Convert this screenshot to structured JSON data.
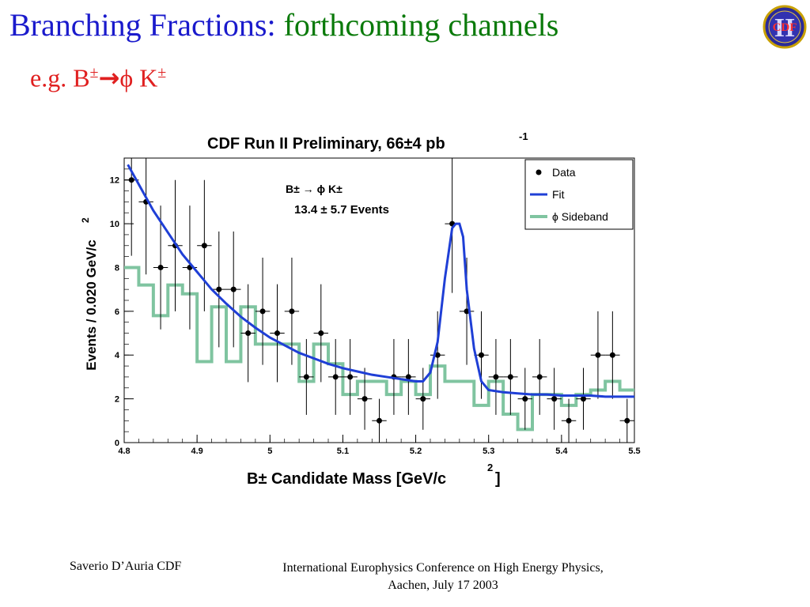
{
  "slide": {
    "title_main": "Branching Fractions: ",
    "title_highlight": "forthcoming channels",
    "subtitle_prefix": "e.g. B",
    "subtitle_pm1": "±",
    "subtitle_arrow": "→",
    "subtitle_phi": "ϕ K",
    "subtitle_pm2": "±",
    "logo_text": "CDF",
    "logo_numeral": "II",
    "accent_title": "#1a1acc",
    "accent_highlight": "#0a7a0a",
    "accent_subtitle": "#e02020"
  },
  "footer": {
    "author": "Saverio D’Auria CDF",
    "conference_line1": "International Europhysics Conference on High Energy Physics,",
    "conference_line2": "Aachen, July 17 2003"
  },
  "chart_data": {
    "type": "scatter",
    "title": "CDF Run II Preliminary, 66±4 pb",
    "title_sup": "-1",
    "xlabel": "B± Candidate Mass [GeV/c",
    "xlabel_sup": "2",
    "xlabel_end": "]",
    "ylabel": "Events / 0.020 GeV/c",
    "ylabel_sup": "2",
    "xlim": [
      4.8,
      5.5
    ],
    "ylim": [
      0,
      13
    ],
    "xticks": [
      4.8,
      4.9,
      5,
      5.1,
      5.2,
      5.3,
      5.4,
      5.5
    ],
    "xtick_labels": [
      "4.8",
      "4.9",
      "5",
      "5.1",
      "5.2",
      "5.3",
      "5.4",
      "5.5"
    ],
    "yticks": [
      0,
      2,
      4,
      6,
      8,
      10,
      12
    ],
    "ytick_labels": [
      "0",
      "2",
      "4",
      "6",
      "8",
      "10",
      "12"
    ],
    "annotation_line1": "B± → ϕ  K±",
    "annotation_line2": "13.4 ±  5.7 Events",
    "legend": {
      "placement": "top-right",
      "entries": [
        {
          "label": "Data",
          "color": "#000000",
          "marker": "dot"
        },
        {
          "label": "Fit",
          "color": "#1f3fd6",
          "marker": "line"
        },
        {
          "label": "ϕ Sideband",
          "color": "#7fc4a0",
          "marker": "line"
        }
      ]
    },
    "series": [
      {
        "name": "Data",
        "color": "#000000",
        "bin_width": 0.02,
        "x": [
          4.81,
          4.83,
          4.85,
          4.87,
          4.89,
          4.91,
          4.93,
          4.95,
          4.97,
          4.99,
          5.01,
          5.03,
          5.05,
          5.07,
          5.09,
          5.11,
          5.13,
          5.15,
          5.17,
          5.19,
          5.21,
          5.23,
          5.25,
          5.27,
          5.29,
          5.31,
          5.33,
          5.35,
          5.37,
          5.39,
          5.41,
          5.43,
          5.45,
          5.47,
          5.49
        ],
        "y": [
          12,
          11,
          8,
          9,
          8,
          9,
          7,
          7,
          5,
          6,
          5,
          6,
          3,
          5,
          3,
          3,
          2,
          1,
          3,
          3,
          2,
          4,
          10,
          6,
          4,
          3,
          3,
          2,
          3,
          2,
          1,
          2,
          4,
          4,
          1
        ]
      },
      {
        "name": "Fit",
        "color": "#1f3fd6",
        "x": [
          4.805,
          4.82,
          4.84,
          4.86,
          4.88,
          4.9,
          4.92,
          4.94,
          4.96,
          4.98,
          5.0,
          5.02,
          5.04,
          5.06,
          5.08,
          5.1,
          5.12,
          5.14,
          5.16,
          5.18,
          5.2,
          5.21,
          5.22,
          5.23,
          5.24,
          5.25,
          5.255,
          5.26,
          5.265,
          5.27,
          5.28,
          5.29,
          5.3,
          5.32,
          5.34,
          5.36,
          5.38,
          5.4,
          5.42,
          5.44,
          5.46,
          5.48,
          5.5
        ],
        "y": [
          12.7,
          11.8,
          10.6,
          9.6,
          8.6,
          7.8,
          7.0,
          6.35,
          5.75,
          5.25,
          4.8,
          4.45,
          4.1,
          3.85,
          3.6,
          3.4,
          3.25,
          3.1,
          3.0,
          2.9,
          2.8,
          2.8,
          3.2,
          4.6,
          7.5,
          9.8,
          10.0,
          10.0,
          9.4,
          7.0,
          4.3,
          2.8,
          2.4,
          2.3,
          2.25,
          2.2,
          2.2,
          2.15,
          2.15,
          2.15,
          2.1,
          2.1,
          2.1
        ]
      },
      {
        "name": "ϕ Sideband",
        "color": "#7fc4a0",
        "bin_width": 0.02,
        "x_left": [
          4.8,
          4.82,
          4.84,
          4.86,
          4.88,
          4.9,
          4.92,
          4.94,
          4.96,
          4.98,
          5.0,
          5.02,
          5.04,
          5.06,
          5.08,
          5.1,
          5.12,
          5.14,
          5.16,
          5.18,
          5.2,
          5.22,
          5.24,
          5.26,
          5.28,
          5.3,
          5.32,
          5.34,
          5.36,
          5.38,
          5.4,
          5.42,
          5.44,
          5.46,
          5.48
        ],
        "y": [
          8,
          7.2,
          5.8,
          7.2,
          6.8,
          3.7,
          6.2,
          3.7,
          6.2,
          4.5,
          4.5,
          4.5,
          2.8,
          4.5,
          3.6,
          2.2,
          2.8,
          2.8,
          2.2,
          2.8,
          2.2,
          3.5,
          2.8,
          2.8,
          1.7,
          2.8,
          1.3,
          0.6,
          2.2,
          2.2,
          1.7,
          2.2,
          2.4,
          2.8,
          2.4
        ]
      }
    ]
  }
}
